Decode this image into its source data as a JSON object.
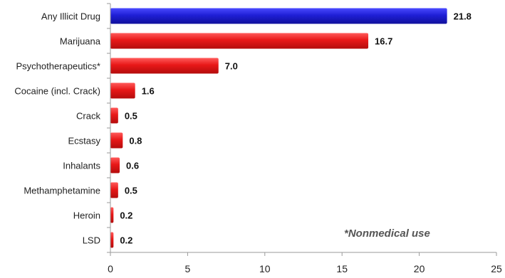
{
  "chart_data": {
    "type": "bar",
    "orientation": "horizontal",
    "categories": [
      "Any Illicit Drug",
      "Marijuana",
      "Psychotherapeutics*",
      "Cocaine (incl. Crack)",
      "Crack",
      "Ecstasy",
      "Inhalants",
      "Methamphetamine",
      "Heroin",
      "LSD"
    ],
    "values": [
      21.8,
      16.7,
      7.0,
      1.6,
      0.5,
      0.8,
      0.6,
      0.5,
      0.2,
      0.2
    ],
    "value_labels": [
      "21.8",
      "16.7",
      "7.0",
      "1.6",
      "0.5",
      "0.8",
      "0.6",
      "0.5",
      "0.2",
      "0.2"
    ],
    "bar_colors": [
      "#1f1fd6",
      "#e81818",
      "#e81818",
      "#e81818",
      "#e81818",
      "#e81818",
      "#e81818",
      "#e81818",
      "#e81818",
      "#e81818"
    ],
    "xlim": [
      0,
      25
    ],
    "xticks": [
      0,
      5,
      10,
      15,
      20,
      25
    ],
    "grid": false,
    "annotation": "*Nonmedical use"
  }
}
